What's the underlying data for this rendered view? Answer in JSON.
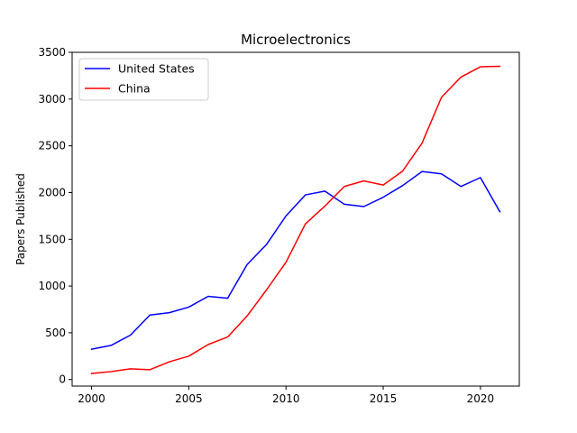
{
  "chart_data": {
    "type": "line",
    "title": "Microelectronics",
    "xlabel": "",
    "ylabel": "Papers Published",
    "x": [
      2000,
      2001,
      2002,
      2003,
      2004,
      2005,
      2006,
      2007,
      2008,
      2009,
      2010,
      2011,
      2012,
      2013,
      2014,
      2015,
      2016,
      2017,
      2018,
      2019,
      2020,
      2021
    ],
    "series": [
      {
        "name": "United States",
        "color": "#0000ff",
        "values": [
          325,
          365,
          475,
          690,
          715,
          775,
          890,
          870,
          1230,
          1445,
          1750,
          1975,
          2015,
          1875,
          1850,
          1950,
          2075,
          2225,
          2200,
          2065,
          2160,
          1795
        ]
      },
      {
        "name": "China",
        "color": "#ff0000",
        "values": [
          65,
          85,
          115,
          105,
          190,
          250,
          375,
          455,
          680,
          960,
          1255,
          1665,
          1855,
          2065,
          2125,
          2080,
          2230,
          2530,
          3020,
          3235,
          3345,
          3350
        ]
      }
    ],
    "xlim": [
      1999,
      2022
    ],
    "ylim": [
      -70,
      3500
    ],
    "xticks": [
      2000,
      2005,
      2010,
      2015,
      2020
    ],
    "yticks": [
      0,
      500,
      1000,
      1500,
      2000,
      2500,
      3000,
      3500
    ],
    "grid": false,
    "legend": "upper-left"
  }
}
